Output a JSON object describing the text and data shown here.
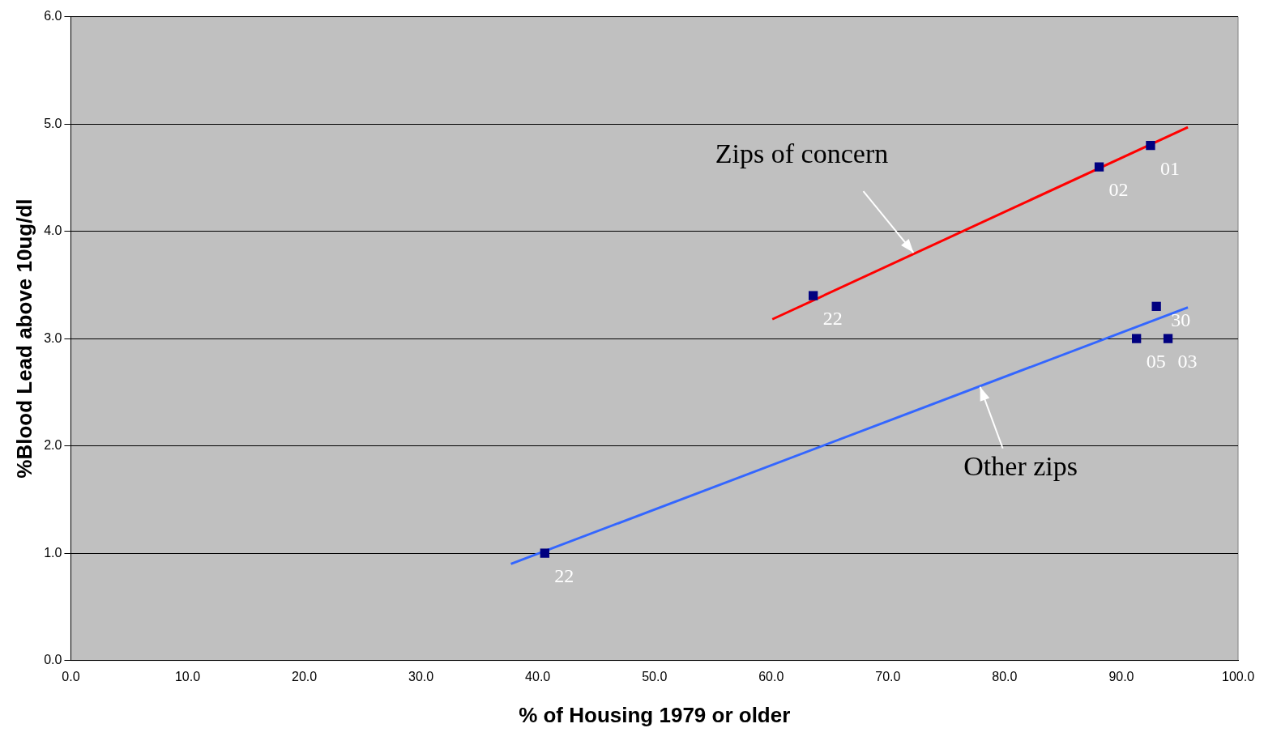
{
  "chart_data": {
    "type": "scatter",
    "xlabel": "% of Housing 1979 or older",
    "ylabel": "%Blood Lead above 10ug/dl",
    "xlim": [
      0,
      100
    ],
    "xticks": [
      {
        "value": 0,
        "label": "0.0"
      },
      {
        "value": 10,
        "label": "10.0"
      },
      {
        "value": 20,
        "label": "20.0"
      },
      {
        "value": 30,
        "label": "30.0"
      },
      {
        "value": 40,
        "label": "40.0"
      },
      {
        "value": 50,
        "label": "50.0"
      },
      {
        "value": 60,
        "label": "60.0"
      },
      {
        "value": 70,
        "label": "70.0"
      },
      {
        "value": 80,
        "label": "80.0"
      },
      {
        "value": 90,
        "label": "90.0"
      },
      {
        "value": 100,
        "label": "100.0"
      }
    ],
    "ylim": [
      0,
      6
    ],
    "yticks": [
      {
        "value": 0,
        "label": "0.0"
      },
      {
        "value": 1,
        "label": "1.0"
      },
      {
        "value": 2,
        "label": "2.0"
      },
      {
        "value": 3,
        "label": "3.0"
      },
      {
        "value": 4,
        "label": "4.0"
      },
      {
        "value": 5,
        "label": "5.0"
      },
      {
        "value": 6,
        "label": "6.0"
      }
    ],
    "grid": "y",
    "legend": false,
    "series": [
      {
        "type": "scatter",
        "marker": "square",
        "color": "#000080",
        "x": [
          63.6,
          88.1,
          92.5,
          93.0,
          91.3,
          94.0,
          40.6
        ],
        "values": [
          3.4,
          4.6,
          4.8,
          3.3,
          3.0,
          3.0,
          1.0
        ]
      },
      {
        "type": "line",
        "marker": "none",
        "color": "#ff0000",
        "x": [
          60.1,
          95.7
        ],
        "values": [
          3.18,
          4.97
        ]
      },
      {
        "type": "line",
        "marker": "none",
        "color": "#3366ff",
        "x": [
          37.7,
          95.7
        ],
        "values": [
          0.9,
          3.29
        ]
      }
    ],
    "annotations": [
      {
        "text": "22",
        "x": 63.6,
        "y": 3.4
      },
      {
        "text": "02",
        "x": 88.1,
        "y": 4.6
      },
      {
        "text": "01",
        "x": 92.5,
        "y": 4.8
      },
      {
        "text": "30",
        "x": 93.0,
        "y": 3.3
      },
      {
        "text": "05",
        "x": 91.3,
        "y": 3.0
      },
      {
        "text": "03",
        "x": 94.0,
        "y": 3.0
      },
      {
        "text": "22",
        "x": 40.6,
        "y": 1.0
      },
      {
        "text": "Zips of concern",
        "x": 72.2,
        "y": 3.8
      },
      {
        "text": "Other zips",
        "x": 77.9,
        "y": 2.55
      }
    ]
  }
}
